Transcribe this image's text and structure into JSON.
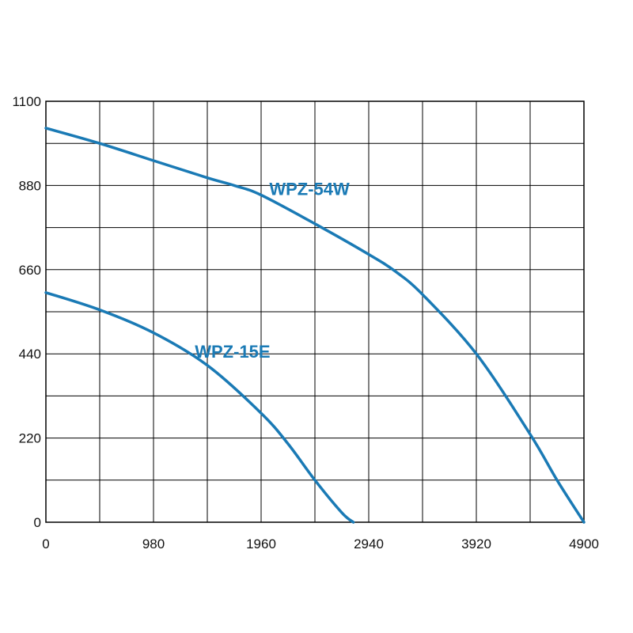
{
  "chart_data": {
    "type": "line",
    "xlim": [
      0,
      4900
    ],
    "ylim": [
      0,
      1100
    ],
    "x_ticks": [
      0,
      980,
      1960,
      2940,
      3920,
      4900
    ],
    "y_ticks": [
      0,
      220,
      440,
      660,
      880,
      1100
    ],
    "x_tick_labels": [
      "0",
      "980",
      "1960",
      "2940",
      "3920",
      "4900"
    ],
    "y_tick_labels": [
      "0",
      "220",
      "440",
      "660",
      "880",
      "1100"
    ],
    "grid": true,
    "grid_x_step": 490,
    "grid_y_step": 110,
    "series": [
      {
        "name": "WPZ-54W",
        "color": "#1a7ab5",
        "x": [
          0,
          490,
          980,
          1470,
          1715,
          1960,
          2450,
          2940,
          3185,
          3430,
          3920,
          4410,
          4655,
          4900
        ],
        "y": [
          1030,
          990,
          945,
          900,
          880,
          855,
          780,
          700,
          655,
          595,
          440,
          230,
          110,
          0
        ]
      },
      {
        "name": "WPZ-15E",
        "color": "#1a7ab5",
        "x": [
          0,
          490,
          980,
          1470,
          1960,
          2205,
          2450,
          2695,
          2800
        ],
        "y": [
          600,
          555,
          495,
          410,
          285,
          205,
          110,
          25,
          0
        ]
      }
    ]
  }
}
